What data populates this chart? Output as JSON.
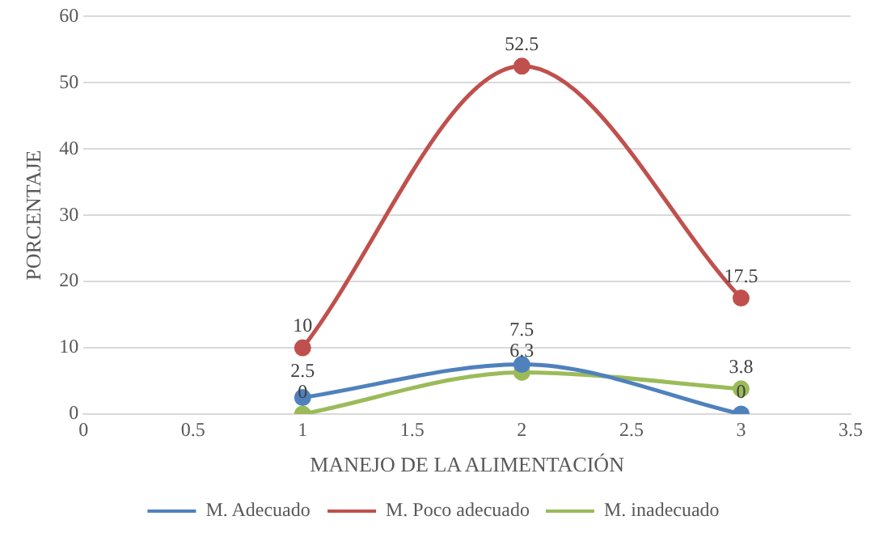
{
  "chart_data": {
    "type": "line",
    "xlabel": "MANEJO DE LA ALIMENTACIÓN",
    "ylabel": "PORCENTAJE",
    "x": [
      1,
      2,
      3
    ],
    "series": [
      {
        "name": "M. Adecuado",
        "color": "#4f81bd",
        "values": [
          2.5,
          7.5,
          0
        ]
      },
      {
        "name": "M. Poco adecuado",
        "color": "#c0504d",
        "values": [
          10,
          52.5,
          17.5
        ]
      },
      {
        "name": "M. inadecuado",
        "color": "#9bbb59",
        "values": [
          0,
          6.3,
          3.8
        ]
      }
    ],
    "xlim": [
      0,
      3.5
    ],
    "xticks": [
      0,
      0.5,
      1,
      1.5,
      2,
      2.5,
      3,
      3.5
    ],
    "ylim": [
      0,
      60
    ],
    "yticks": [
      0,
      10,
      20,
      30,
      40,
      50,
      60
    ],
    "grid": "y",
    "legend": "bottom",
    "marker": "circle",
    "line_style": "solid",
    "data_labels": true
  }
}
